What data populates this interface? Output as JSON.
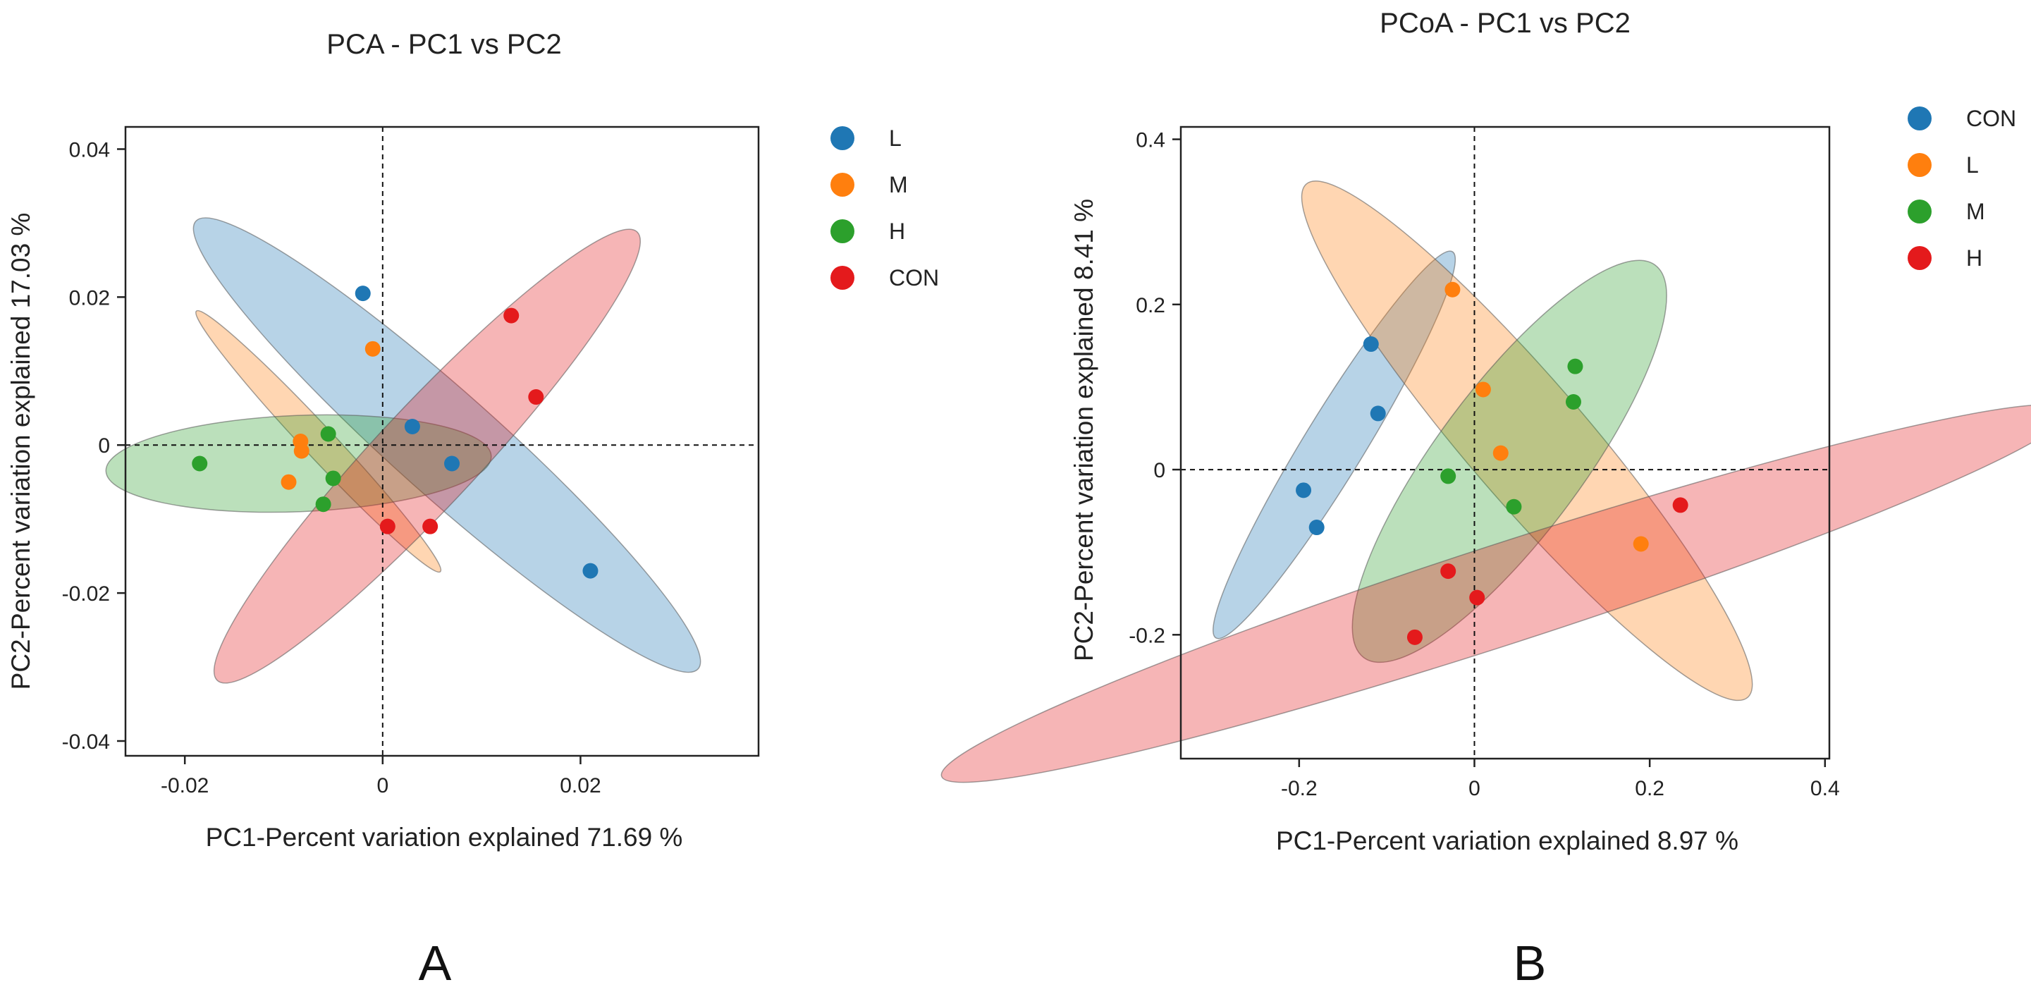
{
  "chart_data": [
    {
      "type": "scatter",
      "panel_label": "A",
      "title": "PCA - PC1 vs PC2",
      "xlabel": "PC1-Percent variation explained 71.69 %",
      "ylabel": "PC2-Percent variation explained 17.03 %",
      "xlim": [
        -0.026,
        0.038
      ],
      "ylim": [
        -0.042,
        0.043
      ],
      "xticks": [
        -0.02,
        0,
        0.02
      ],
      "xtick_labels": [
        "-0.02",
        "0",
        "0.02"
      ],
      "yticks": [
        -0.04,
        -0.02,
        0,
        0.02,
        0.04
      ],
      "ytick_labels": [
        "-0.04",
        "-0.02",
        "0",
        "0.02",
        "0.04"
      ],
      "reference_lines": {
        "x": 0,
        "y": 0
      },
      "legend_position": "right",
      "series": [
        {
          "name": "L",
          "color": "#1f77b4",
          "points": [
            [
              -0.002,
              0.0205
            ],
            [
              0.003,
              0.0025
            ],
            [
              0.007,
              -0.0025
            ],
            [
              0.021,
              -0.017
            ]
          ],
          "ellipse": {
            "cx": 0.0065,
            "cy": 0.0,
            "rx": 0.0395,
            "ry": 0.0058,
            "angle": -50
          }
        },
        {
          "name": "M",
          "color": "#ff7f0e",
          "points": [
            [
              -0.001,
              0.013
            ],
            [
              -0.0083,
              0.0005
            ],
            [
              -0.0082,
              -0.0008
            ],
            [
              -0.0095,
              -0.005
            ]
          ],
          "ellipse": {
            "cx": -0.0065,
            "cy": 0.0005,
            "rx": 0.0215,
            "ry": 0.0017,
            "angle": -55
          }
        },
        {
          "name": "H",
          "color": "#2ca02c",
          "points": [
            [
              -0.0185,
              -0.0025
            ],
            [
              -0.0055,
              0.0015
            ],
            [
              -0.005,
              -0.0045
            ],
            [
              -0.006,
              -0.008
            ]
          ],
          "ellipse": {
            "cx": -0.0085,
            "cy": -0.0025,
            "rx": 0.0195,
            "ry": 0.0065,
            "angle": 3
          }
        },
        {
          "name": "CON",
          "color": "#e41a1c",
          "points": [
            [
              0.013,
              0.0175
            ],
            [
              0.0155,
              0.0065
            ],
            [
              0.0005,
              -0.011
            ],
            [
              0.0048,
              -0.011
            ]
          ],
          "ellipse": {
            "cx": 0.0045,
            "cy": -0.0015,
            "rx": 0.037,
            "ry": 0.0055,
            "angle": 55
          }
        }
      ]
    },
    {
      "type": "scatter",
      "panel_label": "B",
      "title": "PCoA - PC1 vs PC2",
      "xlabel": "PC1-Percent variation explained 8.97 %",
      "ylabel": "PC2-Percent variation explained 8.41 %",
      "xlim": [
        -0.335,
        0.405
      ],
      "ylim": [
        -0.35,
        0.415
      ],
      "xticks": [
        -0.2,
        0,
        0.2,
        0.4
      ],
      "xtick_labels": [
        "-0.2",
        "0",
        "0.2",
        "0.4"
      ],
      "yticks": [
        -0.2,
        0,
        0.2,
        0.4
      ],
      "ytick_labels": [
        "-0.2",
        "0",
        "0.2",
        "0.4"
      ],
      "reference_lines": {
        "x": 0,
        "y": 0
      },
      "legend_position": "right",
      "series": [
        {
          "name": "CON",
          "color": "#1f77b4",
          "points": [
            [
              -0.118,
              0.152
            ],
            [
              -0.11,
              0.068
            ],
            [
              -0.195,
              -0.025
            ],
            [
              -0.18,
              -0.07
            ]
          ],
          "ellipse": {
            "cx": -0.16,
            "cy": 0.03,
            "rx": 0.27,
            "ry": 0.035,
            "angle": 60
          }
        },
        {
          "name": "L",
          "color": "#ff7f0e",
          "points": [
            [
              -0.025,
              0.218
            ],
            [
              0.01,
              0.097
            ],
            [
              0.03,
              0.02
            ],
            [
              0.19,
              -0.09
            ]
          ],
          "ellipse": {
            "cx": 0.06,
            "cy": 0.035,
            "rx": 0.4,
            "ry": 0.07,
            "angle": -51
          }
        },
        {
          "name": "M",
          "color": "#2ca02c",
          "points": [
            [
              0.115,
              0.125
            ],
            [
              0.113,
              0.082
            ],
            [
              -0.03,
              -0.008
            ],
            [
              0.045,
              -0.045
            ]
          ],
          "ellipse": {
            "cx": 0.04,
            "cy": 0.01,
            "rx": 0.29,
            "ry": 0.085,
            "angle": 55
          }
        },
        {
          "name": "H",
          "color": "#e41a1c",
          "points": [
            [
              0.235,
              -0.043
            ],
            [
              -0.03,
              -0.123
            ],
            [
              0.003,
              -0.155
            ],
            [
              -0.068,
              -0.203
            ]
          ],
          "ellipse": {
            "cx": 0.035,
            "cy": -0.15,
            "rx": 0.68,
            "ry": 0.06,
            "angle": 19
          }
        }
      ]
    }
  ]
}
